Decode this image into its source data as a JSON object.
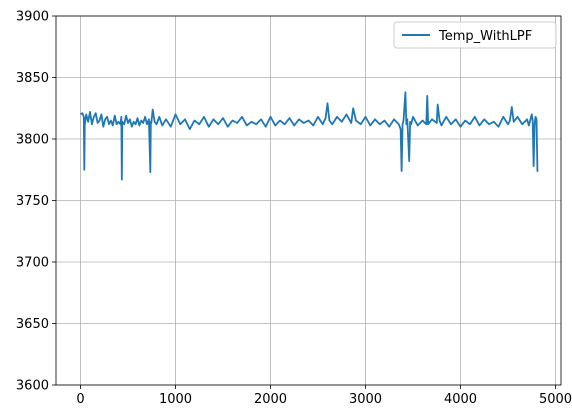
{
  "chart_data": {
    "type": "line",
    "title": "",
    "xlabel": "",
    "ylabel": "",
    "xlim": [
      -258,
      5058
    ],
    "ylim": [
      3600,
      3900
    ],
    "x_ticks": [
      0,
      1000,
      2000,
      3000,
      4000,
      5000
    ],
    "x_tick_labels": [
      "0",
      "1000",
      "2000",
      "3000",
      "4000",
      "5000"
    ],
    "y_ticks": [
      3600,
      3650,
      3700,
      3750,
      3800,
      3850,
      3900
    ],
    "y_tick_labels": [
      "3600",
      "3650",
      "3700",
      "3750",
      "3800",
      "3850",
      "3900"
    ],
    "grid": true,
    "legend_position": "top-right",
    "series": [
      {
        "name": "Temp_WithLPF",
        "color": "#1f77b4",
        "x": [
          0,
          20,
          35,
          40,
          45,
          60,
          80,
          100,
          120,
          140,
          160,
          180,
          200,
          220,
          240,
          260,
          280,
          300,
          320,
          340,
          360,
          380,
          400,
          420,
          430,
          435,
          440,
          460,
          480,
          500,
          520,
          540,
          560,
          580,
          600,
          620,
          640,
          660,
          680,
          700,
          720,
          735,
          740,
          745,
          760,
          780,
          800,
          830,
          860,
          900,
          950,
          1000,
          1050,
          1100,
          1150,
          1200,
          1250,
          1300,
          1350,
          1400,
          1450,
          1500,
          1550,
          1600,
          1650,
          1700,
          1750,
          1800,
          1850,
          1900,
          1950,
          2000,
          2050,
          2100,
          2150,
          2200,
          2250,
          2300,
          2350,
          2400,
          2450,
          2500,
          2550,
          2580,
          2600,
          2620,
          2650,
          2700,
          2750,
          2800,
          2850,
          2870,
          2900,
          2950,
          3000,
          3050,
          3100,
          3150,
          3200,
          3250,
          3300,
          3350,
          3370,
          3380,
          3390,
          3400,
          3420,
          3430,
          3440,
          3460,
          3470,
          3480,
          3500,
          3550,
          3600,
          3640,
          3650,
          3660,
          3700,
          3750,
          3760,
          3780,
          3800,
          3850,
          3900,
          3950,
          4000,
          4050,
          4100,
          4150,
          4200,
          4250,
          4300,
          4350,
          4400,
          4450,
          4500,
          4520,
          4540,
          4560,
          4600,
          4650,
          4700,
          4720,
          4750,
          4760,
          4770,
          4780,
          4790,
          4800,
          4810,
          4820
        ],
        "values": [
          3820,
          3821,
          3818,
          3775,
          3812,
          3820,
          3814,
          3822,
          3812,
          3818,
          3821,
          3813,
          3815,
          3820,
          3810,
          3816,
          3818,
          3812,
          3815,
          3811,
          3819,
          3812,
          3814,
          3812,
          3818,
          3767,
          3814,
          3812,
          3819,
          3813,
          3816,
          3810,
          3814,
          3812,
          3817,
          3811,
          3815,
          3813,
          3818,
          3812,
          3816,
          3773,
          3814,
          3813,
          3824,
          3814,
          3812,
          3818,
          3811,
          3816,
          3810,
          3820,
          3812,
          3816,
          3808,
          3815,
          3812,
          3818,
          3810,
          3816,
          3812,
          3817,
          3810,
          3815,
          3813,
          3818,
          3811,
          3814,
          3812,
          3816,
          3810,
          3818,
          3811,
          3815,
          3812,
          3817,
          3811,
          3816,
          3813,
          3815,
          3811,
          3818,
          3812,
          3817,
          3829,
          3815,
          3812,
          3818,
          3814,
          3820,
          3813,
          3825,
          3815,
          3812,
          3818,
          3811,
          3816,
          3812,
          3815,
          3810,
          3816,
          3812,
          3808,
          3774,
          3812,
          3815,
          3838,
          3812,
          3816,
          3782,
          3814,
          3812,
          3818,
          3811,
          3815,
          3812,
          3835,
          3812,
          3816,
          3813,
          3828,
          3815,
          3811,
          3818,
          3812,
          3816,
          3810,
          3815,
          3812,
          3818,
          3811,
          3816,
          3812,
          3814,
          3810,
          3818,
          3812,
          3815,
          3826,
          3814,
          3818,
          3812,
          3816,
          3811,
          3820,
          3815,
          3778,
          3812,
          3818,
          3816,
          3774,
          3774
        ]
      }
    ]
  }
}
